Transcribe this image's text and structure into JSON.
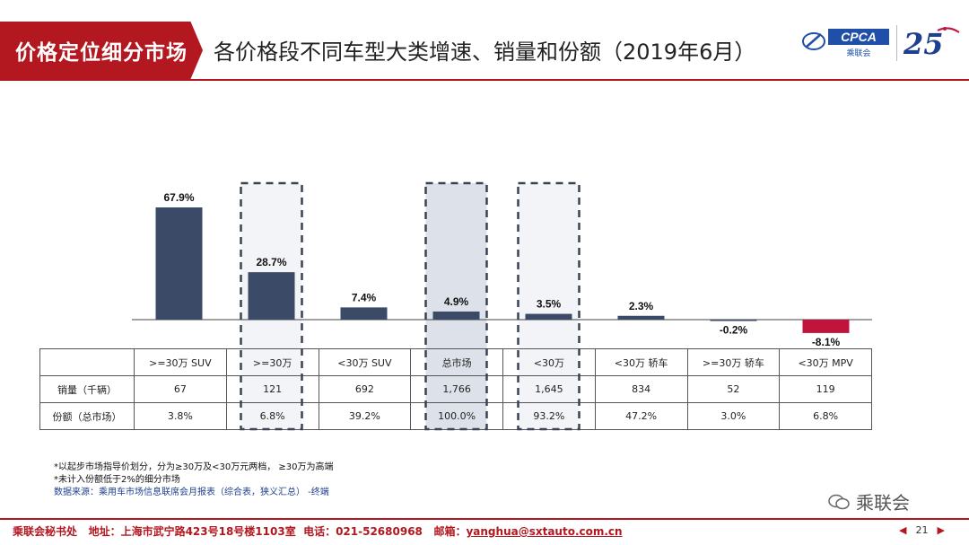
{
  "header": {
    "section": "价格定位细分市场",
    "title": "各价格段不同车型大类增速、销量和份额（2019年6月）",
    "logo_text": "CPCA",
    "logo_sub": "乘联会"
  },
  "colors": {
    "brand_red": "#b3171f",
    "bar_navy": "#3b4a67",
    "negative_bar": "#c0143c",
    "highlight_fill": "#dde2ea"
  },
  "chart_data": {
    "type": "bar",
    "categories": [
      ">=30万 SUV",
      ">=30万",
      "<30万 SUV",
      "总市场",
      "<30万",
      "<30万 轿车",
      ">=30万 轿车",
      "<30万 MPV"
    ],
    "values": [
      67.9,
      28.7,
      7.4,
      4.9,
      3.5,
      2.3,
      -0.2,
      -8.1
    ],
    "value_labels": [
      "67.9%",
      "28.7%",
      "7.4%",
      "4.9%",
      "3.5%",
      "2.3%",
      "-0.2%",
      "-8.1%"
    ],
    "highlighted": [
      ">=30万",
      "总市场",
      "<30万"
    ]
  },
  "table": {
    "headers": [
      ">=30万 SUV",
      ">=30万",
      "<30万 SUV",
      "总市场",
      "<30万",
      "<30万 轿车",
      ">=30万 轿车",
      "<30万 MPV"
    ],
    "rows": [
      {
        "label": "销量（千辆）",
        "values": [
          "67",
          "121",
          "692",
          "1,766",
          "1,645",
          "834",
          "52",
          "119"
        ]
      },
      {
        "label": "份额（总市场）",
        "values": [
          "3.8%",
          "6.8%",
          "39.2%",
          "100.0%",
          "93.2%",
          "47.2%",
          "3.0%",
          "6.8%"
        ]
      }
    ]
  },
  "notes": {
    "line1": "*以起步市场指导价划分，分为≥30万及<30万元两档，  ≥30万为高端",
    "line2": "*未计入份额低于2%的细分市场",
    "source": "数据来源：乘用车市场信息联席会月报表（综合表，狭义汇总）  -终端"
  },
  "watermark": "乘联会",
  "footer": {
    "org": "乘联会秘书处",
    "address": "地址：上海市武宁路423号18号楼1103室",
    "phone": "电话：021-52680968",
    "email_label": "邮箱：",
    "email": "yanghua@sxtauto.com.cn"
  },
  "pager": {
    "page": "21"
  }
}
